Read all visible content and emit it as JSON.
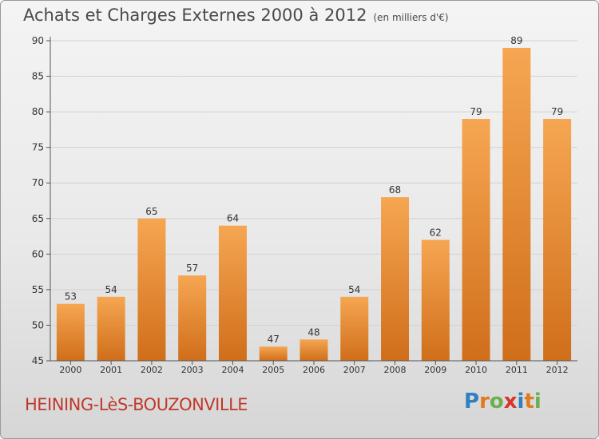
{
  "header": {
    "title": "Achats et Charges Externes 2000 à 2012",
    "subtitle": "(en milliers d'€)"
  },
  "footer": {
    "commune": "HEINING-LèS-BOUZONVILLE",
    "logo_letters": [
      "P",
      "r",
      "o",
      "x",
      "i",
      "t",
      "i"
    ],
    "logo_colors": [
      "#2f7fc1",
      "#e07a1f",
      "#6ab04c",
      "#d9342b",
      "#2f7fc1",
      "#e07a1f",
      "#6ab04c"
    ]
  },
  "chart_data": {
    "type": "bar",
    "title": "Achats et Charges Externes 2000 à 2012",
    "categories": [
      "2000",
      "2001",
      "2002",
      "2003",
      "2004",
      "2005",
      "2006",
      "2007",
      "2008",
      "2009",
      "2010",
      "2011",
      "2012"
    ],
    "values": [
      53,
      54,
      65,
      57,
      64,
      47,
      48,
      54,
      68,
      62,
      79,
      89,
      79
    ],
    "ylim": [
      45,
      90
    ],
    "yticks": [
      45,
      50,
      55,
      60,
      65,
      70,
      75,
      80,
      85,
      90
    ],
    "grid": true,
    "bar_color": "#f08a2c"
  }
}
